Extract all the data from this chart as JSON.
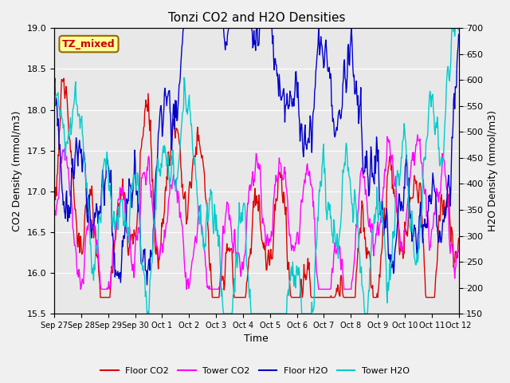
{
  "title": "Tonzi CO2 and H2O Densities",
  "xlabel": "Time",
  "ylabel_left": "CO2 Density (mmol/m3)",
  "ylabel_right": "H2O Density (mmol/m3)",
  "ylim_left": [
    15.5,
    19.0
  ],
  "ylim_right": [
    150,
    700
  ],
  "yticks_left": [
    15.5,
    16.0,
    16.5,
    17.0,
    17.5,
    18.0,
    18.5,
    19.0
  ],
  "yticks_right": [
    150,
    200,
    250,
    300,
    350,
    400,
    450,
    500,
    550,
    600,
    650,
    700
  ],
  "x_tick_labels": [
    "Sep 27",
    "Sep 28",
    "Sep 29",
    "Sep 30",
    "Oct 1",
    "Oct 2",
    "Oct 3",
    "Oct 4",
    "Oct 5",
    "Oct 6",
    "Oct 7",
    "Oct 8",
    "Oct 9",
    "Oct 10",
    "Oct 11",
    "Oct 12"
  ],
  "plot_bg_color": "#e8e8e8",
  "annotation_text": "TZ_mixed",
  "annotation_color": "#cc0000",
  "annotation_bg": "#ffff99",
  "annotation_edgecolor": "#996600",
  "colors": {
    "floor_co2": "#dd0000",
    "tower_co2": "#ff00ff",
    "floor_h2o": "#0000cc",
    "tower_h2o": "#00cccc"
  },
  "legend_labels": [
    "Floor CO2",
    "Tower CO2",
    "Floor H2O",
    "Tower H2O"
  ],
  "grid_color": "#d0d0d0",
  "figsize": [
    6.4,
    4.8
  ],
  "dpi": 100
}
